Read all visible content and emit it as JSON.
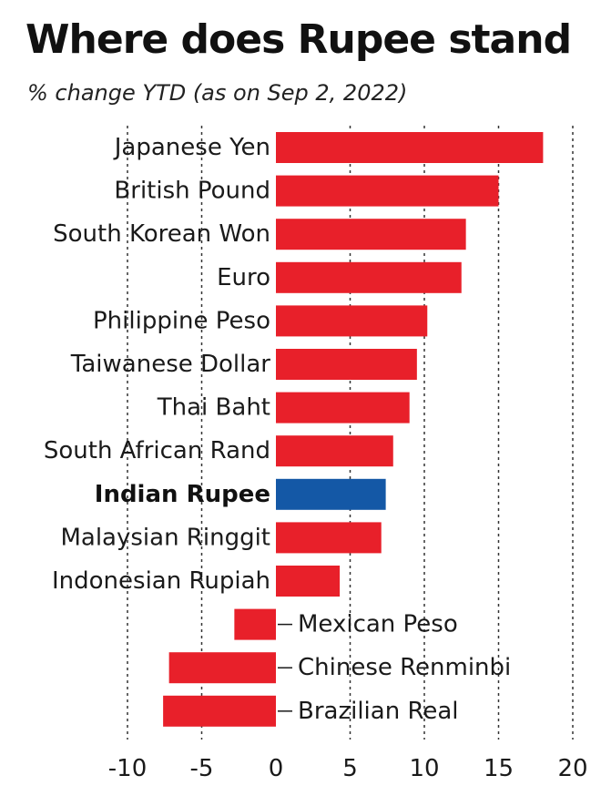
{
  "header": {
    "title": "Where does Rupee stand",
    "subtitle": "% change YTD (as on Sep 2, 2022)"
  },
  "colors": {
    "bar": "#e8202a",
    "highlight": "#1458a6",
    "grid": "#333333",
    "text": "#1a1a1a"
  },
  "chart_data": {
    "type": "bar",
    "orientation": "horizontal",
    "title": "Where does Rupee stand",
    "subtitle": "% change YTD (as on Sep 2, 2022)",
    "xlabel": "",
    "ylabel": "",
    "xlim": [
      -10,
      20
    ],
    "xticks": [
      -10,
      -5,
      0,
      5,
      10,
      15,
      20
    ],
    "tick_labels": [
      "-10",
      "-5",
      "0",
      "5",
      "10",
      "15",
      "20"
    ],
    "grid": "vertical dotted",
    "highlight": "Indian Rupee",
    "categories": [
      "Japanese Yen",
      "British Pound",
      "South Korean Won",
      "Euro",
      "Philippine Peso",
      "Taiwanese Dollar",
      "Thai Baht",
      "South African Rand",
      "Indian Rupee",
      "Malaysian Ringgit",
      "Indonesian Rupiah",
      "Mexican Peso",
      "Chinese Renminbi",
      "Brazilian Real"
    ],
    "values": [
      18.0,
      15.0,
      12.8,
      12.5,
      10.2,
      9.5,
      9.0,
      7.9,
      7.4,
      7.1,
      4.3,
      -2.8,
      -7.2,
      -7.6
    ]
  }
}
